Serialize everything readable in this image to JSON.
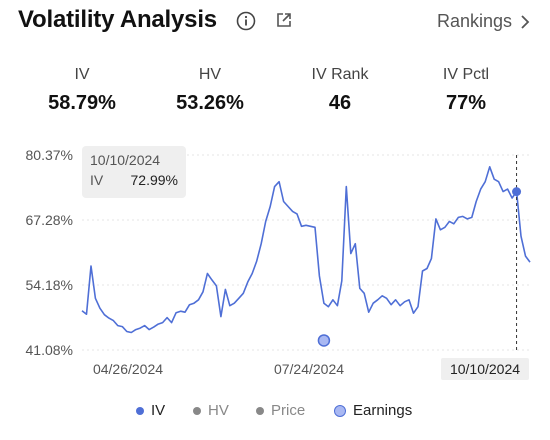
{
  "header": {
    "title": "Volatility Analysis",
    "rankings_label": "Rankings"
  },
  "stats": [
    {
      "label": "IV",
      "value": "58.79%"
    },
    {
      "label": "HV",
      "value": "53.26%"
    },
    {
      "label": "IV Rank",
      "value": "46"
    },
    {
      "label": "IV Pctl",
      "value": "77%"
    }
  ],
  "tooltip": {
    "date": "10/10/2024",
    "series": "IV",
    "value": "72.99%"
  },
  "chart_data": {
    "type": "line",
    "y_ticks": [
      "80.37%",
      "67.28%",
      "54.18%",
      "41.08%"
    ],
    "ylim": [
      41.08,
      80.37
    ],
    "x_tick_labels": [
      "04/26/2024",
      "07/24/2024",
      "10/10/2024"
    ],
    "highlighted_x_label": "10/10/2024",
    "grid": true,
    "series": [
      {
        "name": "IV",
        "color": "#4f6fd6",
        "values": [
          49.0,
          48.3,
          58.0,
          51.5,
          49.5,
          48.2,
          47.5,
          47.0,
          46.0,
          45.8,
          44.8,
          44.6,
          45.2,
          45.5,
          46.0,
          45.2,
          45.7,
          46.3,
          46.6,
          47.6,
          46.6,
          48.6,
          48.9,
          48.7,
          50.2,
          50.5,
          51.2,
          52.8,
          56.5,
          55.2,
          54.0,
          47.8,
          53.3,
          50.0,
          50.5,
          51.5,
          52.5,
          54.8,
          56.5,
          59.0,
          62.5,
          67.0,
          70.0,
          74.0,
          75.0,
          71.0,
          70.0,
          69.0,
          68.5,
          66.0,
          66.2,
          66.0,
          65.8,
          56.0,
          50.5,
          49.8,
          51.2,
          50.0,
          55.0,
          74.0,
          60.5,
          62.5,
          53.5,
          52.5,
          48.7,
          50.5,
          51.2,
          52.0,
          51.5,
          50.2,
          51.2,
          50.0,
          50.8,
          51.2,
          48.5,
          49.8,
          57.0,
          57.5,
          59.5,
          67.5,
          65.3,
          65.8,
          67.0,
          66.5,
          67.8,
          68.0,
          67.5,
          67.8,
          71.0,
          73.5,
          75.0,
          78.0,
          75.5,
          75.0,
          73.0,
          73.5,
          71.7,
          73.0,
          64.0,
          60.0,
          58.79
        ]
      },
      {
        "name": "HV",
        "color": "#888888",
        "values": []
      },
      {
        "name": "Price",
        "color": "#888888",
        "values": []
      },
      {
        "name": "Earnings",
        "color": "#a9b8f2",
        "points": [
          {
            "index": 54,
            "value": 43.0
          }
        ]
      }
    ],
    "highlight_point": {
      "index": 97,
      "value": 72.99
    }
  },
  "legend": [
    {
      "label": "IV",
      "color": "#4f6fd6",
      "style": "dot"
    },
    {
      "label": "HV",
      "color": "#888888",
      "style": "dot"
    },
    {
      "label": "Price",
      "color": "#888888",
      "style": "dot"
    },
    {
      "label": "Earnings",
      "color": "#a9b8f2",
      "style": "ring"
    }
  ]
}
